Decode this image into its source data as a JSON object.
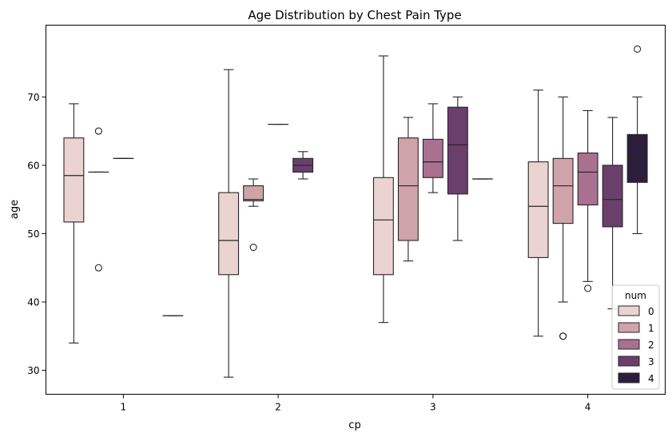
{
  "chart_data": {
    "type": "box",
    "title": "Age Distribution by Chest Pain Type",
    "xlabel": "cp",
    "ylabel": "age",
    "categories": [
      "1",
      "2",
      "3",
      "4"
    ],
    "yticks": [
      "30",
      "40",
      "50",
      "60",
      "70"
    ],
    "ylim": [
      26.5,
      80.5
    ],
    "legend": {
      "title": "num",
      "position": "lower right",
      "entries": [
        "0",
        "1",
        "2",
        "3",
        "4"
      ]
    },
    "hue_levels": [
      "0",
      "1",
      "2",
      "3",
      "4"
    ],
    "hue_colors": [
      "#ead3d1",
      "#d0a2aa",
      "#a9708f",
      "#6b3f6c",
      "#2d1e3e"
    ],
    "boxes": [
      {
        "cp": "1",
        "num": "0",
        "q1": 51.7,
        "median": 58.5,
        "q3": 64.0,
        "whislo": 34,
        "whishi": 69,
        "fliers": []
      },
      {
        "cp": "1",
        "num": "1",
        "q1": 59.0,
        "median": 59.0,
        "q3": 59.0,
        "whislo": 59,
        "whishi": 59,
        "fliers": [
          65,
          45
        ]
      },
      {
        "cp": "1",
        "num": "2",
        "q1": 61.0,
        "median": 61.0,
        "q3": 61.0,
        "whislo": 61,
        "whishi": 61,
        "fliers": []
      },
      {
        "cp": "1",
        "num": "4",
        "q1": 38.0,
        "median": 38.0,
        "q3": 38.0,
        "whislo": 38,
        "whishi": 38,
        "fliers": []
      },
      {
        "cp": "2",
        "num": "0",
        "q1": 44.0,
        "median": 49.0,
        "q3": 56.0,
        "whislo": 29,
        "whishi": 74,
        "fliers": []
      },
      {
        "cp": "2",
        "num": "1",
        "q1": 54.8,
        "median": 55.0,
        "q3": 57.0,
        "whislo": 54,
        "whishi": 58,
        "fliers": [
          48
        ]
      },
      {
        "cp": "2",
        "num": "2",
        "q1": 66.0,
        "median": 66.0,
        "q3": 66.0,
        "whislo": 66,
        "whishi": 66,
        "fliers": []
      },
      {
        "cp": "2",
        "num": "3",
        "q1": 59.0,
        "median": 60.0,
        "q3": 61.0,
        "whislo": 58,
        "whishi": 62,
        "fliers": []
      },
      {
        "cp": "3",
        "num": "0",
        "q1": 44.0,
        "median": 52.0,
        "q3": 58.2,
        "whislo": 37,
        "whishi": 76,
        "fliers": []
      },
      {
        "cp": "3",
        "num": "1",
        "q1": 49.0,
        "median": 57.0,
        "q3": 64.0,
        "whislo": 46,
        "whishi": 67,
        "fliers": []
      },
      {
        "cp": "3",
        "num": "2",
        "q1": 58.2,
        "median": 60.5,
        "q3": 63.8,
        "whislo": 56,
        "whishi": 69,
        "fliers": []
      },
      {
        "cp": "3",
        "num": "3",
        "q1": 55.8,
        "median": 63.0,
        "q3": 68.5,
        "whislo": 49,
        "whishi": 70,
        "fliers": []
      },
      {
        "cp": "3",
        "num": "4",
        "q1": 58.0,
        "median": 58.0,
        "q3": 58.0,
        "whislo": 58,
        "whishi": 58,
        "fliers": []
      },
      {
        "cp": "4",
        "num": "0",
        "q1": 46.5,
        "median": 54.0,
        "q3": 60.5,
        "whislo": 35,
        "whishi": 71,
        "fliers": []
      },
      {
        "cp": "4",
        "num": "1",
        "q1": 51.5,
        "median": 57.0,
        "q3": 61.0,
        "whislo": 40,
        "whishi": 70,
        "fliers": [
          35,
          35
        ]
      },
      {
        "cp": "4",
        "num": "2",
        "q1": 54.2,
        "median": 59.0,
        "q3": 61.8,
        "whislo": 43,
        "whishi": 68,
        "fliers": [
          42
        ]
      },
      {
        "cp": "4",
        "num": "3",
        "q1": 51.0,
        "median": 55.0,
        "q3": 60.0,
        "whislo": 39,
        "whishi": 67,
        "fliers": []
      },
      {
        "cp": "4",
        "num": "4",
        "q1": 57.5,
        "median": 61.0,
        "q3": 64.5,
        "whislo": 50,
        "whishi": 70,
        "fliers": [
          77
        ]
      }
    ]
  }
}
